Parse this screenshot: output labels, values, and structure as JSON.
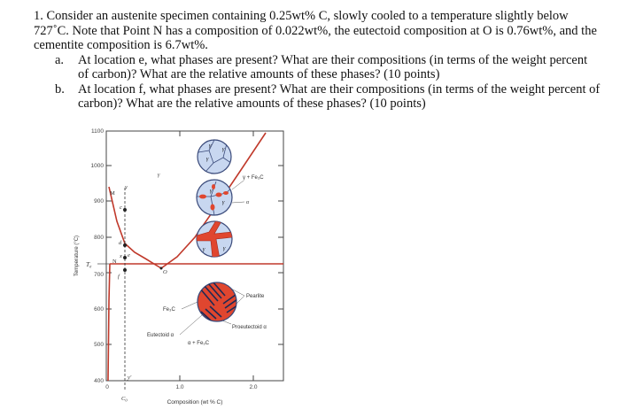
{
  "question": {
    "intro": "1. Consider an austenite specimen containing 0.25wt% C, slowly cooled to a temperature slightly below 727˚C. Note that Point N has a composition of 0.022wt%, the eutectoid composition at O is 0.76wt%, and the cementite composition is 6.7wt%.",
    "parts": [
      {
        "label": "a.",
        "text": "At location e, what phases are present? What are their compositions (in terms of the weight percent of carbon)? What are the relative amounts of these phases? (10 points)"
      },
      {
        "label": "b.",
        "text": "At location f, what phases are present? What are their compositions (in terms of the weight percent of carbon)? What are the relative amounts of these phases? (10 points)"
      }
    ]
  },
  "diagram": {
    "y_axis_label": "Temperature (°C)",
    "x_axis_label": "Composition (wt % C)",
    "y_ticks": [
      "1100",
      "1000",
      "900",
      "800",
      "700",
      "600",
      "500",
      "400"
    ],
    "x_ticks": [
      "0",
      "1.0",
      "2.0"
    ],
    "te_label": "T",
    "te_sub": "e",
    "c0_label": "C",
    "c0_sub": "0",
    "point_labels": {
      "M": "M",
      "N": "N",
      "O": "O",
      "c": "c",
      "d": "d",
      "e": "e",
      "f": "f",
      "x": "x",
      "y": "y",
      "y_prime": "y′"
    },
    "region_labels": {
      "gamma": "γ",
      "gamma_fe3c": "γ + Fe₃C",
      "alpha_fe3c": "α + Fe₃C",
      "fe3c": "Fe₃C",
      "eutectoid_alpha": "Eutectoid α",
      "pearlite": "Pearlite",
      "proeutectoid_alpha": "Proeutectoid α",
      "alpha_small": "α"
    },
    "grain_labels": {
      "g": "γ",
      "a": "α"
    },
    "colors": {
      "phase_line": "#c0392b",
      "grain_fill": "#c8d7f0",
      "ferrite": "#e0462f",
      "grain_border": "#3a4a7a"
    }
  }
}
